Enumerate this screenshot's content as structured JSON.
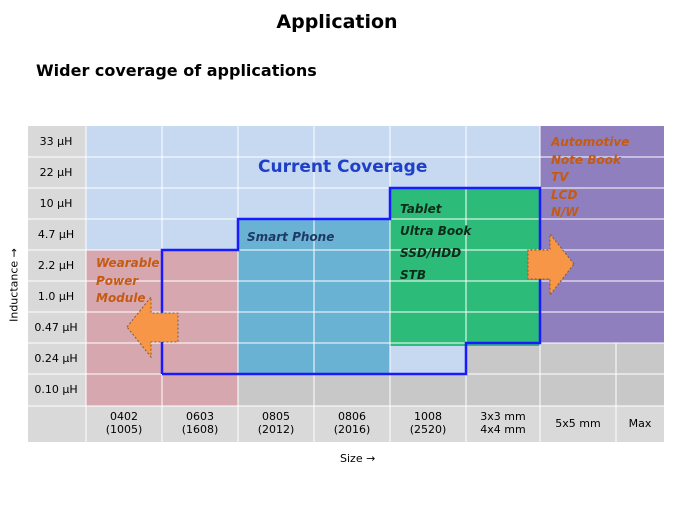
{
  "page": {
    "title": "Application",
    "subtitle": "Wider coverage of applications"
  },
  "axes": {
    "y_title": "Inductance →",
    "x_title": "Size →",
    "y_labels": [
      "33 µH",
      "22 µH",
      "10 µH",
      "4.7 µH",
      "2.2 µH",
      "1.0 µH",
      "0.47 µH",
      "0.24 µH",
      "0.10 µH"
    ],
    "x_labels": [
      {
        "line1": "0402",
        "line2": "(1005)"
      },
      {
        "line1": "0603",
        "line2": "(1608)"
      },
      {
        "line1": "0805",
        "line2": "(2012)"
      },
      {
        "line1": "0806",
        "line2": "(2016)"
      },
      {
        "line1": "1008",
        "line2": "(2520)"
      },
      {
        "line1": "3x3 mm",
        "line2": "4x4 mm"
      },
      {
        "line1": "5x5 mm",
        "line2": ""
      },
      {
        "line1": "Max",
        "line2": ""
      }
    ]
  },
  "coverage": {
    "label": "Current Coverage"
  },
  "applications": {
    "wearable": [
      "Wearable",
      "Power",
      "Module"
    ],
    "smartphone": "Smart Phone",
    "tablet": [
      "Tablet",
      "Ultra Book",
      "SSD/HDD",
      "STB"
    ],
    "automotive": [
      "Automotive",
      "Note Book",
      "TV",
      "LCD",
      "N/W"
    ]
  },
  "colors": {
    "grid_bg": "#c6d9f0",
    "header_bg": "#d9d9d9",
    "current_coverage": "#1f3fc8",
    "coverage_line": "#1a1aff",
    "wearable_region": "#d7a7b0",
    "wearable_text": "#c55a11",
    "smartphone_region": "#6ab2d4",
    "smartphone_text": "#1f3864",
    "tablet_region": "#2dbb79",
    "tablet_text": "#0d2b1a",
    "automotive_region": "#8f7fbf",
    "automotive_text": "#c55a11",
    "arrow": "#f79646"
  }
}
